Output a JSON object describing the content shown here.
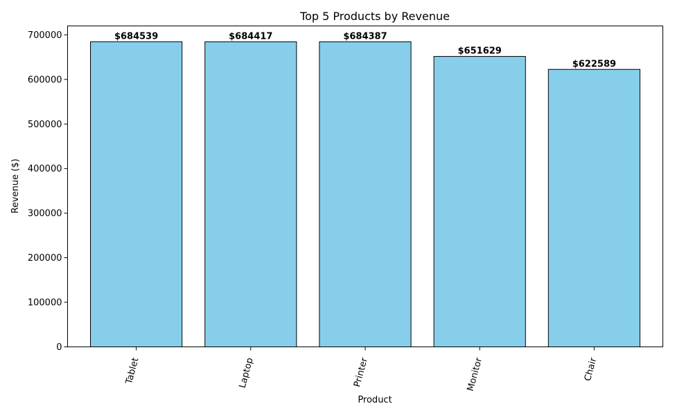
{
  "chart_data": {
    "type": "bar",
    "title": "Top 5 Products by Revenue",
    "xlabel": "Product",
    "ylabel": "Revenue ($)",
    "categories": [
      "Tablet",
      "Laptop",
      "Printer",
      "Monitor",
      "Chair"
    ],
    "values": [
      684539,
      684417,
      684387,
      651629,
      622589
    ],
    "data_labels": [
      "$684539",
      "$684417",
      "$684387",
      "$651629",
      "$622589"
    ],
    "ylim": [
      0,
      720000
    ],
    "yticks": [
      0,
      100000,
      200000,
      300000,
      400000,
      500000,
      600000,
      700000
    ],
    "ytick_labels": [
      "0",
      "100000",
      "200000",
      "300000",
      "400000",
      "500000",
      "600000",
      "700000"
    ],
    "x_tick_rotation_deg": 75,
    "grid": false,
    "legend": "none",
    "colors": {
      "bar_fill": "#87ceeb",
      "bar_edge": "#000000",
      "axis": "#000000"
    }
  }
}
